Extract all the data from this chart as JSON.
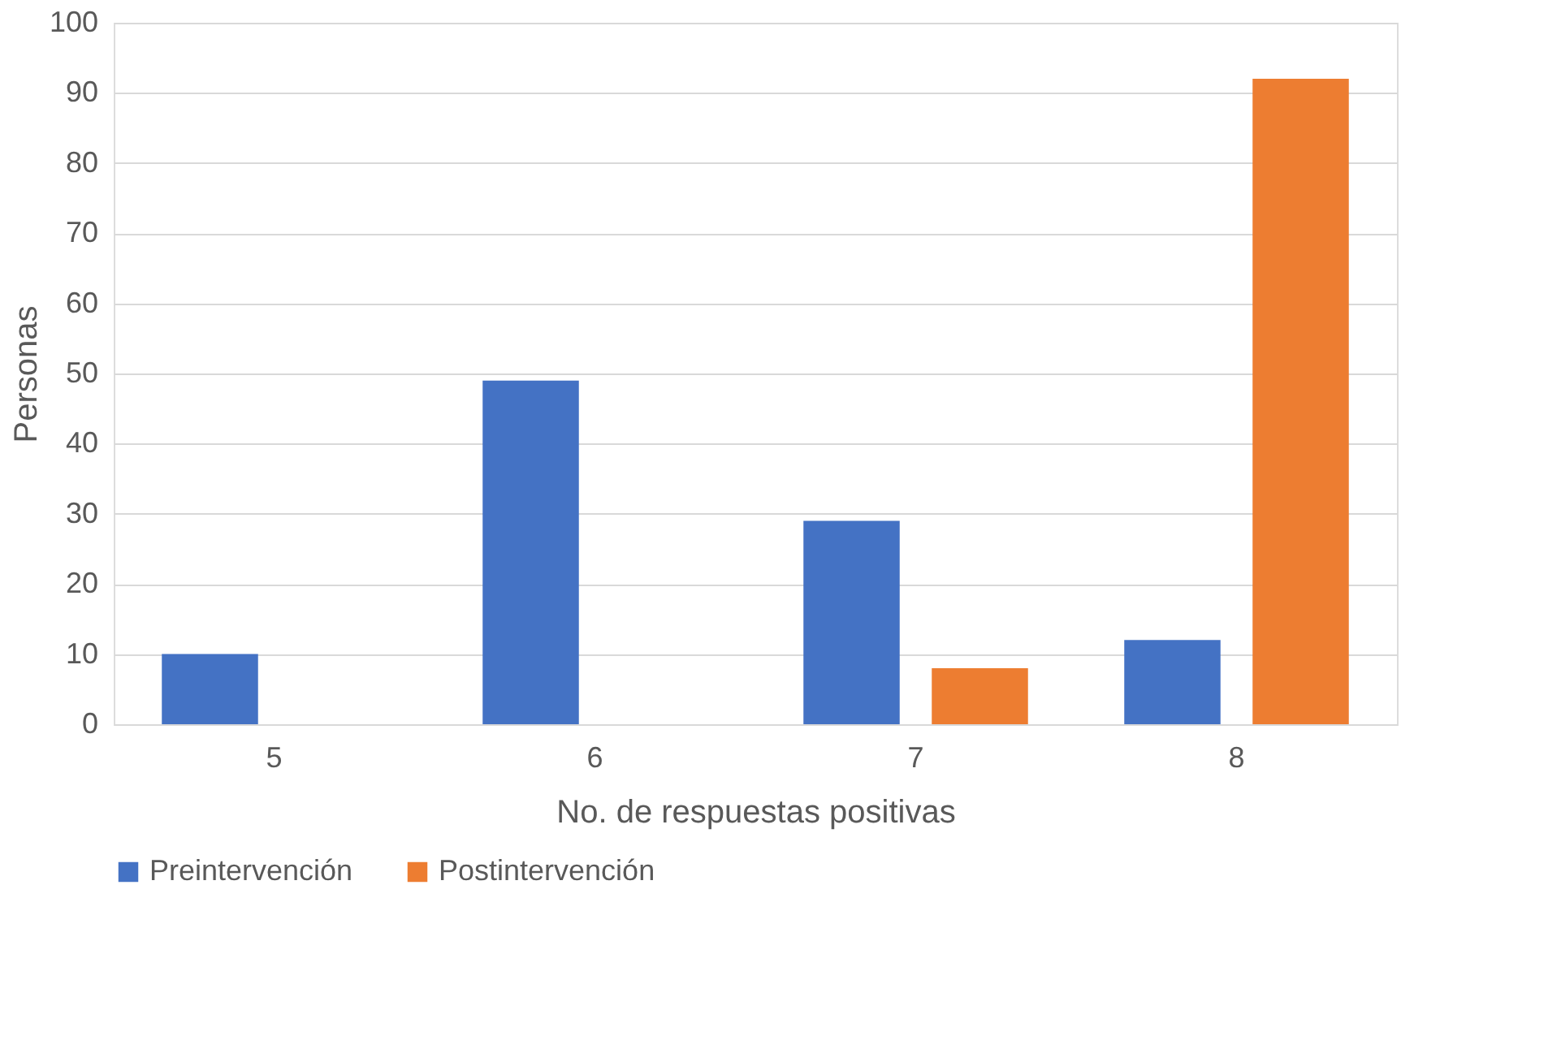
{
  "chart_data": {
    "type": "bar",
    "xlabel": "No. de respuestas positivas",
    "ylabel": "Personas",
    "categories": [
      "5",
      "6",
      "7",
      "8"
    ],
    "series": [
      {
        "name": "Preintervención",
        "color": "#4472c4",
        "values": [
          10,
          49,
          29,
          12
        ]
      },
      {
        "name": "Postintervención",
        "color": "#ed7d31",
        "values": [
          0,
          0,
          8,
          92
        ]
      }
    ],
    "ylim": [
      0,
      100
    ],
    "yticks": [
      0,
      10,
      20,
      30,
      40,
      50,
      60,
      70,
      80,
      90,
      100
    ],
    "grid": "y",
    "legend": "bottom"
  }
}
